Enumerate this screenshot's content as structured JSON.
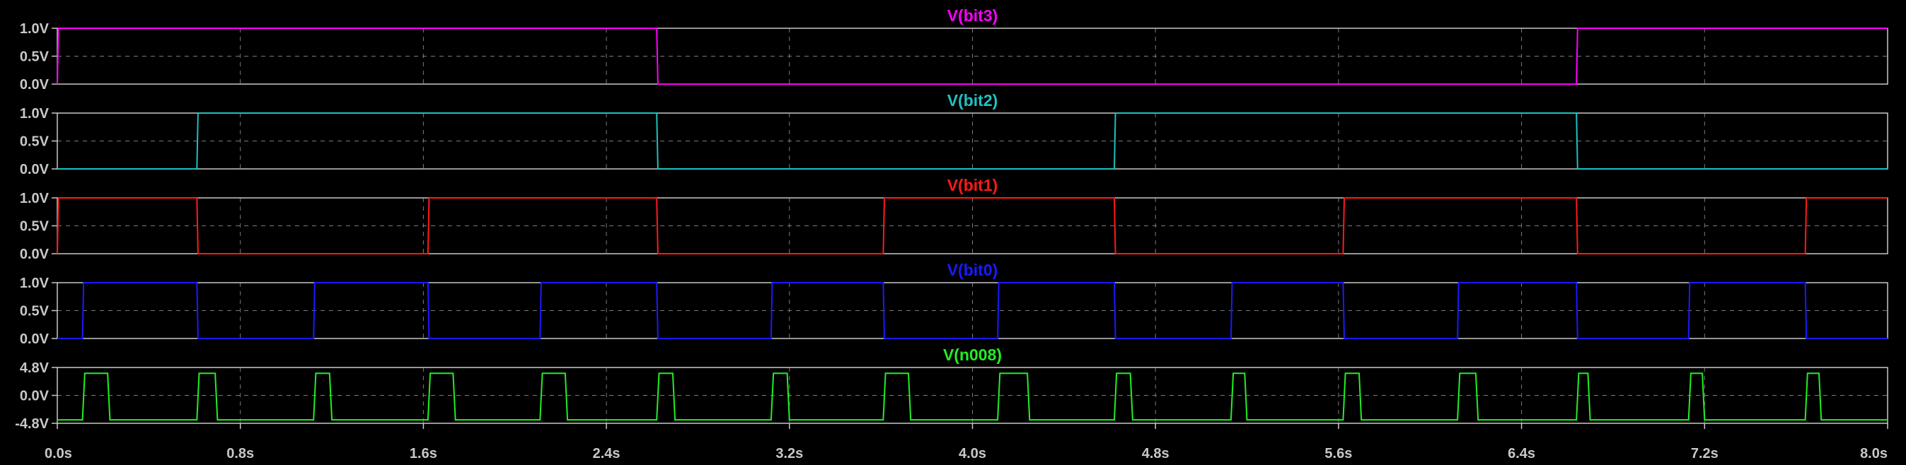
{
  "chart_data": {
    "type": "line",
    "grid": true,
    "x": {
      "ticks": [
        0,
        0.8,
        1.6,
        2.4,
        3.2,
        4.0,
        4.8,
        5.6,
        6.4,
        7.2,
        8.0
      ],
      "tick_labels": [
        "0.0s",
        "0.8s",
        "1.6s",
        "2.4s",
        "3.2s",
        "4.0s",
        "4.8s",
        "5.6s",
        "6.4s",
        "7.2s",
        "8.0s"
      ],
      "range": [
        0,
        8.0
      ]
    },
    "panels": [
      {
        "name": "V(bit3)",
        "color": "#ff00ff",
        "ylim": [
          0,
          1
        ],
        "yticks": [
          1.0,
          0.5,
          0.0
        ],
        "ytick_labels": [
          "1.0V",
          "0.5V",
          "0.0V"
        ],
        "points": [
          [
            0,
            0
          ],
          [
            0.005,
            1
          ],
          [
            2.62,
            1
          ],
          [
            2.625,
            0
          ],
          [
            6.64,
            0
          ],
          [
            6.645,
            1
          ],
          [
            8.0,
            1
          ]
        ]
      },
      {
        "name": "V(bit2)",
        "color": "#20c0c0",
        "ylim": [
          0,
          1
        ],
        "yticks": [
          1.0,
          0.5,
          0.0
        ],
        "ytick_labels": [
          "1.0V",
          "0.5V",
          "0.0V"
        ],
        "points": [
          [
            0,
            0
          ],
          [
            0.61,
            0
          ],
          [
            0.615,
            1
          ],
          [
            2.62,
            1
          ],
          [
            2.625,
            0
          ],
          [
            4.62,
            0
          ],
          [
            4.625,
            1
          ],
          [
            6.64,
            1
          ],
          [
            6.645,
            0
          ],
          [
            8.0,
            0
          ]
        ]
      },
      {
        "name": "V(bit1)",
        "color": "#ff1a1a",
        "ylim": [
          0,
          1
        ],
        "yticks": [
          1.0,
          0.5,
          0.0
        ],
        "ytick_labels": [
          "1.0V",
          "0.5V",
          "0.0V"
        ],
        "points": [
          [
            0,
            0
          ],
          [
            0.005,
            1
          ],
          [
            0.61,
            1
          ],
          [
            0.615,
            0
          ],
          [
            1.62,
            0
          ],
          [
            1.625,
            1
          ],
          [
            2.62,
            1
          ],
          [
            2.625,
            0
          ],
          [
            3.61,
            0
          ],
          [
            3.615,
            1
          ],
          [
            4.62,
            1
          ],
          [
            4.625,
            0
          ],
          [
            5.62,
            0
          ],
          [
            5.625,
            1
          ],
          [
            6.64,
            1
          ],
          [
            6.645,
            0
          ],
          [
            7.64,
            0
          ],
          [
            7.645,
            1
          ],
          [
            8.0,
            1
          ]
        ]
      },
      {
        "name": "V(bit0)",
        "color": "#1a1aff",
        "ylim": [
          0,
          1
        ],
        "yticks": [
          1.0,
          0.5,
          0.0
        ],
        "ytick_labels": [
          "1.0V",
          "0.5V",
          "0.0V"
        ],
        "points": [
          [
            0,
            0
          ],
          [
            0.11,
            0
          ],
          [
            0.115,
            1
          ],
          [
            0.61,
            1
          ],
          [
            0.615,
            0
          ],
          [
            1.12,
            0
          ],
          [
            1.125,
            1
          ],
          [
            1.62,
            1
          ],
          [
            1.625,
            0
          ],
          [
            2.11,
            0
          ],
          [
            2.115,
            1
          ],
          [
            2.62,
            1
          ],
          [
            2.625,
            0
          ],
          [
            3.12,
            0
          ],
          [
            3.125,
            1
          ],
          [
            3.61,
            1
          ],
          [
            3.615,
            0
          ],
          [
            4.11,
            0
          ],
          [
            4.115,
            1
          ],
          [
            4.62,
            1
          ],
          [
            4.625,
            0
          ],
          [
            5.13,
            0
          ],
          [
            5.135,
            1
          ],
          [
            5.62,
            1
          ],
          [
            5.625,
            0
          ],
          [
            6.12,
            0
          ],
          [
            6.125,
            1
          ],
          [
            6.64,
            1
          ],
          [
            6.645,
            0
          ],
          [
            7.13,
            0
          ],
          [
            7.135,
            1
          ],
          [
            7.64,
            1
          ],
          [
            7.645,
            0
          ],
          [
            8.0,
            0
          ]
        ]
      },
      {
        "name": "V(n008)",
        "color": "#22ee22",
        "ylim": [
          -4.8,
          4.8
        ],
        "yticks": [
          4.8,
          0.0,
          -4.8
        ],
        "ytick_labels": [
          "4.8V",
          "0.0V",
          "-4.8V"
        ],
        "points": [
          [
            0,
            -4.2
          ],
          [
            0.11,
            -4.2
          ],
          [
            0.12,
            3.8
          ],
          [
            0.22,
            3.8
          ],
          [
            0.23,
            -4.2
          ],
          [
            0.61,
            -4.2
          ],
          [
            0.62,
            3.8
          ],
          [
            0.69,
            3.8
          ],
          [
            0.7,
            -4.2
          ],
          [
            1.12,
            -4.2
          ],
          [
            1.13,
            3.8
          ],
          [
            1.19,
            3.8
          ],
          [
            1.2,
            -4.2
          ],
          [
            1.62,
            -4.2
          ],
          [
            1.63,
            3.8
          ],
          [
            1.73,
            3.8
          ],
          [
            1.74,
            -4.2
          ],
          [
            2.11,
            -4.2
          ],
          [
            2.12,
            3.8
          ],
          [
            2.22,
            3.8
          ],
          [
            2.23,
            -4.2
          ],
          [
            2.62,
            -4.2
          ],
          [
            2.63,
            3.8
          ],
          [
            2.69,
            3.8
          ],
          [
            2.7,
            -4.2
          ],
          [
            3.12,
            -4.2
          ],
          [
            3.13,
            3.8
          ],
          [
            3.19,
            3.8
          ],
          [
            3.2,
            -4.2
          ],
          [
            3.61,
            -4.2
          ],
          [
            3.62,
            3.8
          ],
          [
            3.72,
            3.8
          ],
          [
            3.73,
            -4.2
          ],
          [
            4.11,
            -4.2
          ],
          [
            4.12,
            3.8
          ],
          [
            4.24,
            3.8
          ],
          [
            4.25,
            -4.2
          ],
          [
            4.62,
            -4.2
          ],
          [
            4.63,
            3.8
          ],
          [
            4.69,
            3.8
          ],
          [
            4.7,
            -4.2
          ],
          [
            5.13,
            -4.2
          ],
          [
            5.14,
            3.8
          ],
          [
            5.19,
            3.8
          ],
          [
            5.2,
            -4.2
          ],
          [
            5.62,
            -4.2
          ],
          [
            5.63,
            3.8
          ],
          [
            5.69,
            3.8
          ],
          [
            5.7,
            -4.2
          ],
          [
            6.12,
            -4.2
          ],
          [
            6.13,
            3.8
          ],
          [
            6.2,
            3.8
          ],
          [
            6.21,
            -4.2
          ],
          [
            6.64,
            -4.2
          ],
          [
            6.65,
            3.8
          ],
          [
            6.69,
            3.8
          ],
          [
            6.7,
            -4.2
          ],
          [
            7.13,
            -4.2
          ],
          [
            7.14,
            3.8
          ],
          [
            7.19,
            3.8
          ],
          [
            7.2,
            -4.2
          ],
          [
            7.64,
            -4.2
          ],
          [
            7.65,
            3.8
          ],
          [
            7.7,
            3.8
          ],
          [
            7.71,
            -4.2
          ],
          [
            8.0,
            -4.2
          ]
        ]
      }
    ]
  }
}
